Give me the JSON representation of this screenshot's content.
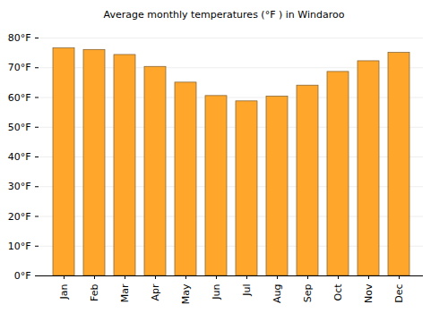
{
  "chart_data": {
    "type": "bar",
    "title": "Average monthly temperatures (°F ) in Windaroo",
    "categories": [
      "Jan",
      "Feb",
      "Mar",
      "Apr",
      "May",
      "Jun",
      "Jul",
      "Aug",
      "Sep",
      "Oct",
      "Nov",
      "Dec"
    ],
    "values": [
      76.5,
      76,
      74.3,
      70.3,
      65,
      60.5,
      58.7,
      60.3,
      64,
      68.6,
      72.2,
      75
    ],
    "color": "#ffa62b",
    "ylim": [
      0,
      80
    ],
    "yticks": [
      {
        "value": 0,
        "label": "0°F"
      },
      {
        "value": 10,
        "label": "10°F"
      },
      {
        "value": 20,
        "label": "20°F"
      },
      {
        "value": 30,
        "label": "30°F"
      },
      {
        "value": 40,
        "label": "40°F"
      },
      {
        "value": 50,
        "label": "50°F"
      },
      {
        "value": 60,
        "label": "60°F"
      },
      {
        "value": 70,
        "label": "70°F"
      },
      {
        "value": 80,
        "label": "80°F"
      }
    ],
    "grid": true
  }
}
